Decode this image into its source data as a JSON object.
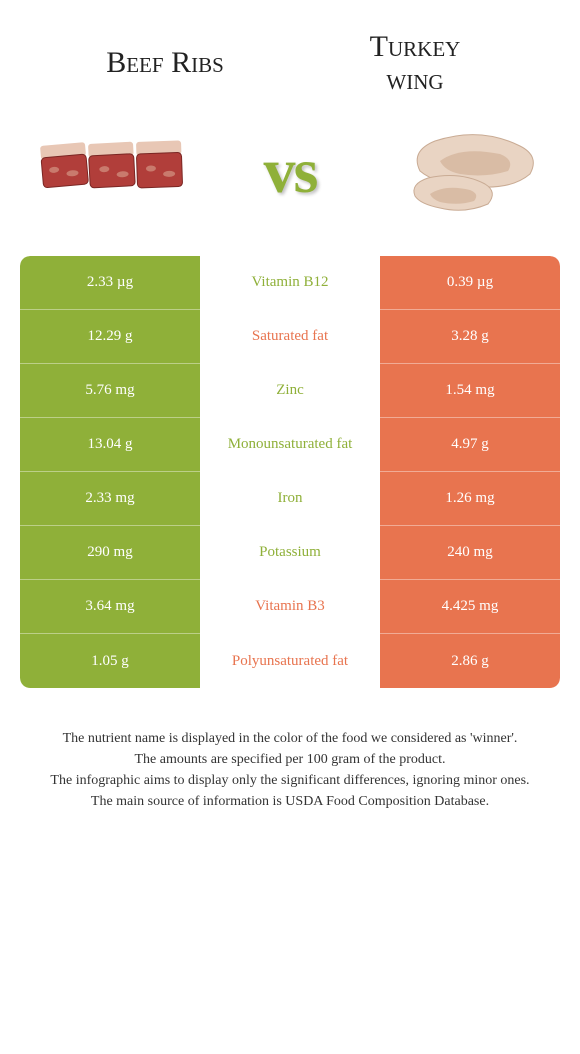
{
  "header": {
    "left_title": "Beef Ribs",
    "right_title_line1": "Turkey",
    "right_title_line2": "wing",
    "vs": "vs"
  },
  "colors": {
    "green": "#8fb039",
    "orange": "#e8744f",
    "text": "#333333",
    "bg": "#ffffff"
  },
  "table": {
    "rows": [
      {
        "left": "2.33 µg",
        "label": "Vitamin B12",
        "winner": "green",
        "right": "0.39 µg"
      },
      {
        "left": "12.29 g",
        "label": "Saturated fat",
        "winner": "orange",
        "right": "3.28 g"
      },
      {
        "left": "5.76 mg",
        "label": "Zinc",
        "winner": "green",
        "right": "1.54 mg"
      },
      {
        "left": "13.04 g",
        "label": "Monounsaturated fat",
        "winner": "green",
        "right": "4.97 g"
      },
      {
        "left": "2.33 mg",
        "label": "Iron",
        "winner": "green",
        "right": "1.26 mg"
      },
      {
        "left": "290 mg",
        "label": "Potassium",
        "winner": "green",
        "right": "240 mg"
      },
      {
        "left": "3.64 mg",
        "label": "Vitamin B3",
        "winner": "orange",
        "right": "4.425 mg"
      },
      {
        "left": "1.05 g",
        "label": "Polyunsaturated fat",
        "winner": "orange",
        "right": "2.86 g"
      }
    ]
  },
  "footer": {
    "line1": "The nutrient name is displayed in the color of the food we considered as 'winner'.",
    "line2": "The amounts are specified per 100 gram of the product.",
    "line3": "The infographic aims to display only the significant differences, ignoring minor ones.",
    "line4": "The main source of information is USDA Food Composition Database."
  }
}
